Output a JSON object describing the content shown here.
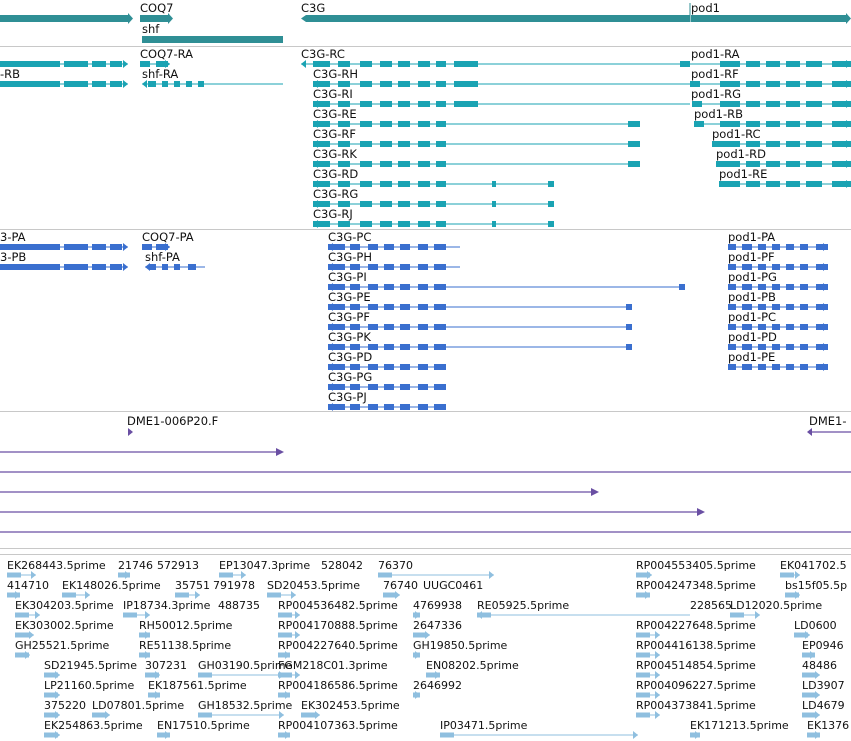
{
  "colors": {
    "gene": "#2f8f95",
    "transcript": "#1aa3b3",
    "protein": "#3a6fcf",
    "clone": "#6a4fa3",
    "est": "#8fbfdf",
    "divider": "#c8c8c8"
  },
  "genes": {
    "coq7": "COQ7",
    "shf": "shf",
    "c3g": "C3G",
    "pod1": "pod1"
  },
  "transcripts": {
    "left": [
      "-RB"
    ],
    "coq7": "COQ7-RA",
    "shf": "shf-RA",
    "c3g": [
      "C3G-RC",
      "C3G-RH",
      "C3G-RI",
      "C3G-RE",
      "C3G-RF",
      "C3G-RK",
      "C3G-RD",
      "C3G-RG",
      "C3G-RJ"
    ],
    "pod1": [
      "pod1-RA",
      "pod1-RF",
      "pod1-RG",
      "pod1-RB",
      "pod1-RC",
      "pod1-RD",
      "pod1-RE"
    ]
  },
  "proteins": {
    "left": [
      "3-PA",
      "3-PB"
    ],
    "coq7": "COQ7-PA",
    "shf": "shf-PA",
    "c3g": [
      "C3G-PC",
      "C3G-PH",
      "C3G-PI",
      "C3G-PE",
      "C3G-PF",
      "C3G-PK",
      "C3G-PD",
      "C3G-PG",
      "C3G-PJ"
    ],
    "pod1": [
      "pod1-PA",
      "pod1-PF",
      "pod1-PG",
      "pod1-PB",
      "pod1-PC",
      "pod1-PD",
      "pod1-PE"
    ]
  },
  "clones": [
    "DME1-006P20.F",
    "DME1-"
  ],
  "ests": [
    "EK268443.5prime",
    "21746",
    "572913",
    "EP13047.3prime",
    "528042",
    "76370",
    "RP004553405.5prime",
    "EK041702.5",
    "414710",
    "EK148026.5prime",
    "35751",
    "791978",
    "SD20453.5prime",
    "76740",
    "UUGC0461",
    "RP004247348.5prime",
    "bs15f05.5p",
    "EK304203.5prime",
    "IP18734.3prime",
    "488735",
    "RP004536482.5prime",
    "4769938",
    "RE05925.5prime",
    "228565",
    "LD12020.5prime",
    "EK303002.5prime",
    "RH50012.5prime",
    "RP004170888.5prime",
    "2647336",
    "RP004227648.5prime",
    "LD0600",
    "GH25521.5prime",
    "RE51138.5prime",
    "RP004227640.5prime",
    "GH19850.5prime",
    "RP004416138.5prime",
    "EP0946",
    "SD21945.5prime",
    "307231",
    "GH03190.5prime",
    "FGM218C01.3prime",
    "EN08202.5prime",
    "RP004514854.5prime",
    "48486",
    "LP21160.5prime",
    "EK187561.5prime",
    "RP004186586.5prime",
    "2646992",
    "RP004096227.5prime",
    "LD3907",
    "375220",
    "LD07801.5prime",
    "GH18532.5prime",
    "EK302453.5prime",
    "RP004373841.5prime",
    "LD4679",
    "EK254863.5prime",
    "EN17510.5prime",
    "RP004107363.5prime",
    "IP03471.5prime",
    "EK171213.5prime",
    "EK1376"
  ]
}
